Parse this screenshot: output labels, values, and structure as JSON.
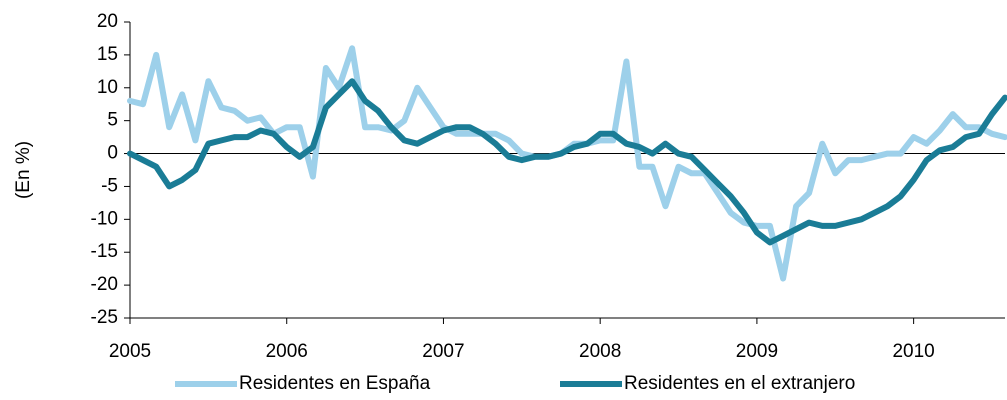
{
  "chart_data": {
    "type": "line",
    "ylabel": "(En %)",
    "x": [
      2005,
      2005.083,
      2005.167,
      2005.25,
      2005.333,
      2005.417,
      2005.5,
      2005.583,
      2005.667,
      2005.75,
      2005.833,
      2005.917,
      2006,
      2006.083,
      2006.167,
      2006.25,
      2006.333,
      2006.417,
      2006.5,
      2006.583,
      2006.667,
      2006.75,
      2006.833,
      2006.917,
      2007,
      2007.083,
      2007.167,
      2007.25,
      2007.333,
      2007.417,
      2007.5,
      2007.583,
      2007.667,
      2007.75,
      2007.833,
      2007.917,
      2008,
      2008.083,
      2008.167,
      2008.25,
      2008.333,
      2008.417,
      2008.5,
      2008.583,
      2008.667,
      2008.75,
      2008.833,
      2008.917,
      2009,
      2009.083,
      2009.167,
      2009.25,
      2009.333,
      2009.417,
      2009.5,
      2009.583,
      2009.667,
      2009.75,
      2009.833,
      2009.917,
      2010,
      2010.083,
      2010.167,
      2010.25,
      2010.333,
      2010.417,
      2010.5,
      2010.583
    ],
    "series": [
      {
        "name": "Residentes en España",
        "color": "#9dd0ea",
        "width": 6,
        "values": [
          8,
          7.5,
          15,
          4,
          9,
          2,
          11,
          7,
          6.5,
          5,
          5.5,
          3,
          4,
          4,
          -3.5,
          13,
          10,
          16,
          4,
          4,
          3.5,
          5,
          10,
          7,
          4,
          3,
          3,
          3,
          3,
          2,
          0,
          -0.5,
          -0.5,
          0,
          1.5,
          1.5,
          2,
          2,
          14,
          -2,
          -2,
          -8,
          -2,
          -3,
          -3,
          -6,
          -9,
          -10.5,
          -11,
          -11,
          -19,
          -8,
          -6,
          1.5,
          -3,
          -1,
          -1,
          -0.5,
          0,
          0,
          2.5,
          1.5,
          3.5,
          6,
          4,
          4,
          3,
          2.5
        ]
      },
      {
        "name": "Residentes en el extranjero",
        "color": "#1a7c96",
        "width": 6,
        "values": [
          0,
          -1,
          -2,
          -5,
          -4,
          -2.5,
          1.5,
          2,
          2.5,
          2.5,
          3.5,
          3,
          1,
          -0.5,
          1,
          7,
          9,
          11,
          8,
          6.5,
          4,
          2,
          1.5,
          2.5,
          3.5,
          4,
          4,
          3,
          1.5,
          -0.5,
          -1,
          -0.5,
          -0.5,
          0,
          1,
          1.5,
          3,
          3,
          1.5,
          1,
          0,
          1.5,
          0,
          -0.5,
          -2.5,
          -4.5,
          -6.5,
          -9,
          -12,
          -13.5,
          -12.5,
          -11.5,
          -10.5,
          -11,
          -11,
          -10.5,
          -10,
          -9,
          -8,
          -6.5,
          -4,
          -1,
          0.5,
          1,
          2.5,
          3,
          6,
          8.5
        ]
      }
    ],
    "xlim": [
      2005,
      2010.583
    ],
    "xticks": [
      2005,
      2006,
      2007,
      2008,
      2009,
      2010
    ],
    "ylim": [
      -25,
      20
    ],
    "yticks": [
      20,
      15,
      10,
      5,
      0,
      -5,
      -10,
      -15,
      -20,
      -25
    ],
    "legend": "bottom"
  }
}
